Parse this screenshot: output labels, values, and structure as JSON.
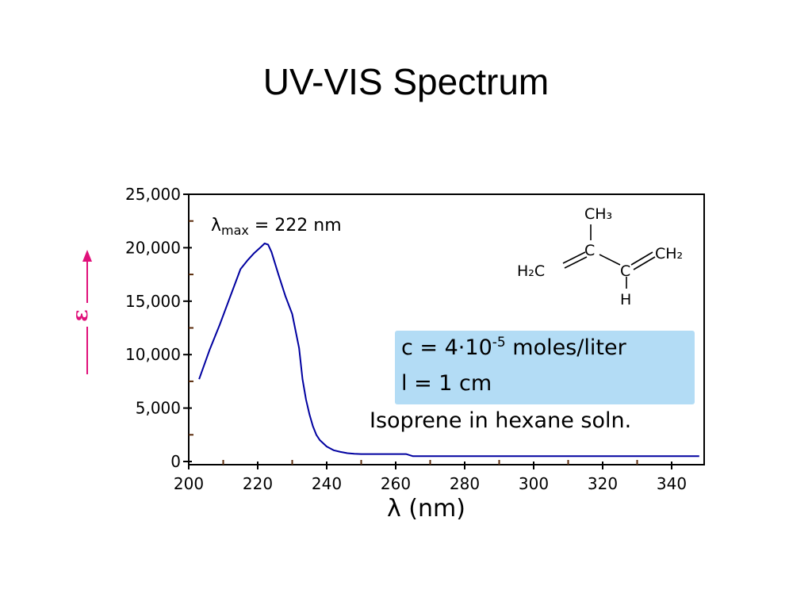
{
  "slide": {
    "title": "UV-VIS Spectrum"
  },
  "chart_data": {
    "type": "line",
    "xlabel": "λ (nm)",
    "ylabel": "ε",
    "xlim": [
      200,
      350
    ],
    "ylim": [
      0,
      25000
    ],
    "x_ticks": [
      200,
      220,
      240,
      260,
      280,
      300,
      320,
      340
    ],
    "x_tick_labels": [
      "200",
      "220",
      "240",
      "260",
      "280",
      "300",
      "320",
      "340"
    ],
    "y_ticks": [
      0,
      5000,
      10000,
      15000,
      20000,
      25000
    ],
    "y_tick_labels": [
      "0",
      "5,000",
      "10,000",
      "15,000",
      "20,000",
      "25,000"
    ],
    "grid": false,
    "line_color": "#0000a0",
    "axis_label_color": "#e0107a",
    "series": [
      {
        "x": [
          203,
          206,
          209,
          212,
          215,
          217,
          219,
          221,
          222,
          223,
          224,
          226,
          228,
          230,
          232,
          233,
          234,
          235,
          236,
          237,
          238,
          240,
          242,
          244,
          246,
          248,
          250,
          255,
          260,
          263,
          265,
          270,
          280,
          300,
          320,
          340,
          348
        ],
        "y": [
          7700,
          10400,
          12800,
          15400,
          18000,
          18800,
          19500,
          20100,
          20400,
          20300,
          19600,
          17500,
          15500,
          13800,
          10600,
          7700,
          5800,
          4400,
          3300,
          2500,
          2000,
          1400,
          1050,
          900,
          780,
          720,
          700,
          700,
          700,
          700,
          500,
          500,
          500,
          500,
          500,
          500,
          500
        ]
      }
    ]
  },
  "annotations": {
    "lambda_symbol": "λ",
    "lambda_sub": "max",
    "lambda_value": " = 222 nm",
    "conc_main": "c = 4·10",
    "conc_exp": "-5",
    "conc_unit": " moles/liter",
    "path_length": "l = 1 cm",
    "solvent": "Isoprene in hexane soln."
  },
  "structure": {
    "ch3": "CH₃",
    "c_center": "C",
    "h2c_left": "H₂C",
    "c_right": "C",
    "ch2_right": "CH₂",
    "h": "H"
  }
}
